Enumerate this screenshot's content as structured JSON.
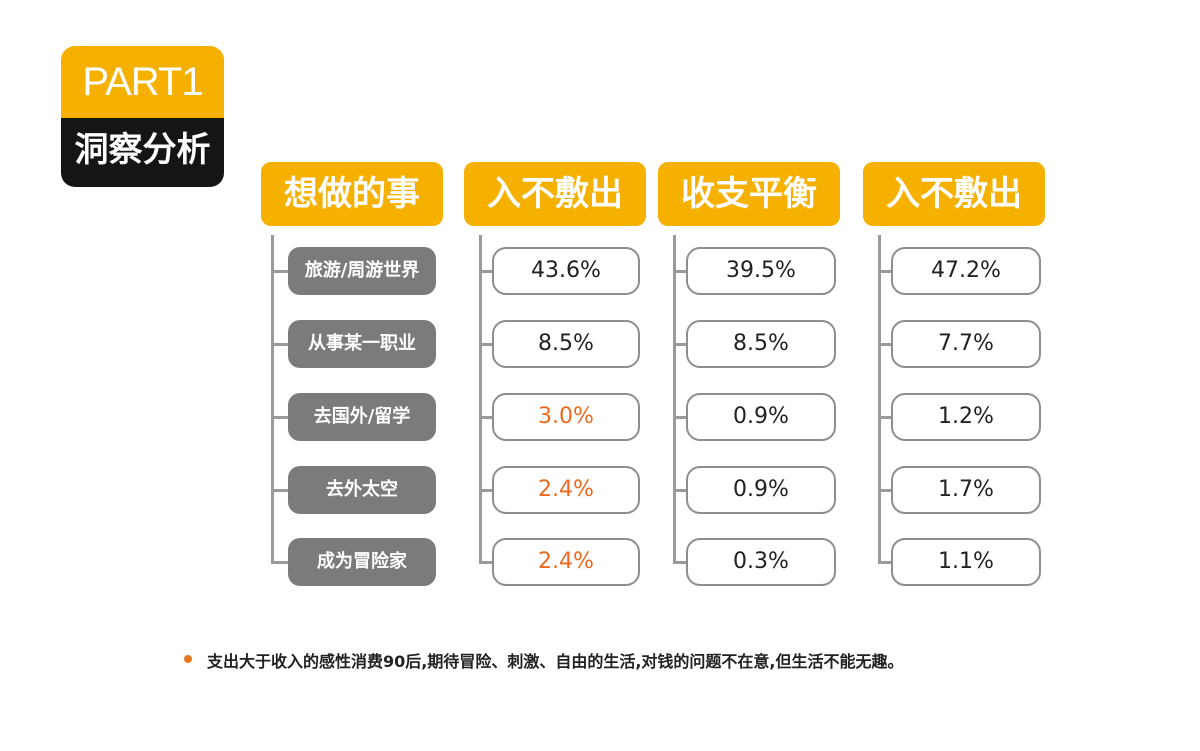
{
  "badge": {
    "part": "PART1",
    "subtitle": "洞察分析"
  },
  "columns": [
    {
      "header": "想做的事",
      "items": [
        "旅游/周游世界",
        "从事某一职业",
        "去国外/留学",
        "去外太空",
        "成为冒险家"
      ]
    },
    {
      "header": "入不敷出",
      "items": [
        "43.6%",
        "8.5%",
        "3.0%",
        "2.4%",
        "2.4%"
      ],
      "highlight": [
        false,
        false,
        true,
        true,
        true
      ]
    },
    {
      "header": "收支平衡",
      "items": [
        "39.5%",
        "8.5%",
        "0.9%",
        "0.9%",
        "0.3%"
      ],
      "highlight": [
        false,
        false,
        false,
        false,
        false
      ]
    },
    {
      "header": "入不敷出",
      "items": [
        "47.2%",
        "7.7%",
        "1.2%",
        "1.7%",
        "1.1%"
      ],
      "highlight": [
        false,
        false,
        false,
        false,
        false
      ]
    }
  ],
  "note": "支出大于收入的感性消费90后,期待冒险、刺激、自由的生活,对钱的问题不在意,但生活不能无趣。",
  "colors": {
    "accent": "#f5b000",
    "highlight": "#ec6a1d",
    "dark": "#151515",
    "category_bg": "#7b7b7b"
  }
}
